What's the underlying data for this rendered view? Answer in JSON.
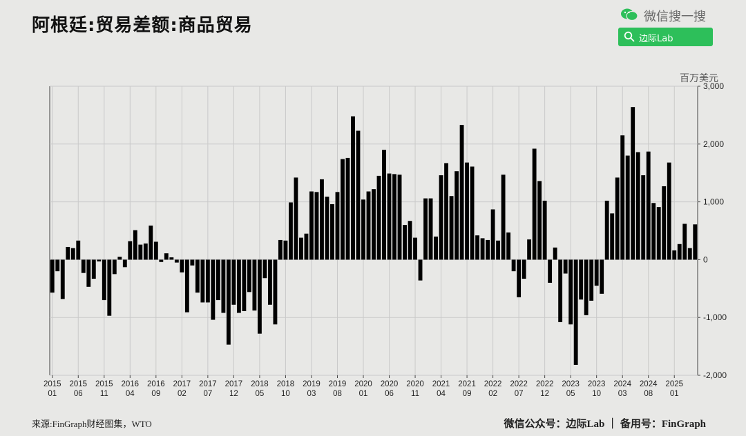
{
  "title": "阿根廷:贸易差额:商品贸易",
  "brand": {
    "text": "微信搜一搜",
    "icon": "wechat-icon",
    "search_label": "边际Lab",
    "search_icon": "search-icon",
    "color": "#2dbf5a"
  },
  "unit_label": "百万美元",
  "footer": {
    "source": "来源:FinGraph财经图集，WTO",
    "wechat": "微信公众号：边际Lab ｜ 备用号：FinGraph"
  },
  "chart_data": {
    "type": "bar",
    "title": "阿根廷:贸易差额:商品贸易",
    "ylabel": "百万美元",
    "ylim": [
      -2000,
      3000
    ],
    "y_ticks": [
      3000,
      2000,
      1000,
      0,
      -1000,
      -2000
    ],
    "y_tick_labels": [
      "3,000",
      "2,000",
      "1,000",
      "0",
      "-1,000",
      "-2,000"
    ],
    "y_axis_position": "right",
    "grid": true,
    "bar_color": "#000000",
    "x_ticks": [
      {
        "index": 0,
        "year": "2015",
        "month": "01"
      },
      {
        "index": 5,
        "year": "2015",
        "month": "06"
      },
      {
        "index": 10,
        "year": "2015",
        "month": "11"
      },
      {
        "index": 15,
        "year": "2016",
        "month": "04"
      },
      {
        "index": 20,
        "year": "2016",
        "month": "09"
      },
      {
        "index": 25,
        "year": "2017",
        "month": "02"
      },
      {
        "index": 30,
        "year": "2017",
        "month": "07"
      },
      {
        "index": 35,
        "year": "2017",
        "month": "12"
      },
      {
        "index": 40,
        "year": "2018",
        "month": "05"
      },
      {
        "index": 45,
        "year": "2018",
        "month": "10"
      },
      {
        "index": 50,
        "year": "2019",
        "month": "03"
      },
      {
        "index": 55,
        "year": "2019",
        "month": "08"
      },
      {
        "index": 60,
        "year": "2020",
        "month": "01"
      },
      {
        "index": 65,
        "year": "2020",
        "month": "06"
      },
      {
        "index": 70,
        "year": "2020",
        "month": "11"
      },
      {
        "index": 75,
        "year": "2021",
        "month": "04"
      },
      {
        "index": 80,
        "year": "2021",
        "month": "09"
      },
      {
        "index": 85,
        "year": "2022",
        "month": "02"
      },
      {
        "index": 90,
        "year": "2022",
        "month": "07"
      },
      {
        "index": 95,
        "year": "2022",
        "month": "12"
      },
      {
        "index": 100,
        "year": "2023",
        "month": "05"
      },
      {
        "index": 105,
        "year": "2023",
        "month": "10"
      },
      {
        "index": 110,
        "year": "2024",
        "month": "03"
      },
      {
        "index": 115,
        "year": "2024",
        "month": "08"
      },
      {
        "index": 120,
        "year": "2025",
        "month": "01"
      }
    ],
    "start": "2015-01",
    "values": [
      -570,
      -200,
      -680,
      220,
      200,
      330,
      -230,
      -470,
      -330,
      -30,
      -700,
      -970,
      -250,
      50,
      -130,
      320,
      510,
      260,
      280,
      590,
      310,
      -40,
      110,
      40,
      -50,
      -220,
      -910,
      -100,
      -570,
      -740,
      -740,
      -1040,
      -700,
      -920,
      -1470,
      -780,
      -920,
      -890,
      -560,
      -880,
      -1280,
      -320,
      -780,
      -1120,
      340,
      330,
      990,
      1420,
      380,
      450,
      1180,
      1170,
      1390,
      1090,
      960,
      1170,
      1740,
      1760,
      2480,
      2230,
      1040,
      1180,
      1220,
      1450,
      1900,
      1490,
      1480,
      1470,
      600,
      670,
      380,
      -360,
      1060,
      1060,
      400,
      1460,
      1670,
      1100,
      1530,
      2330,
      1680,
      1610,
      420,
      370,
      340,
      870,
      330,
      1470,
      470,
      -200,
      -650,
      -330,
      350,
      1920,
      1360,
      1020,
      -400,
      210,
      -1080,
      -240,
      -1120,
      -1820,
      -690,
      -960,
      -710,
      -450,
      -590,
      1020,
      800,
      1420,
      2150,
      1800,
      2640,
      1860,
      1460,
      1870,
      980,
      910,
      1270,
      1680,
      160,
      270,
      620,
      200,
      610
    ]
  }
}
